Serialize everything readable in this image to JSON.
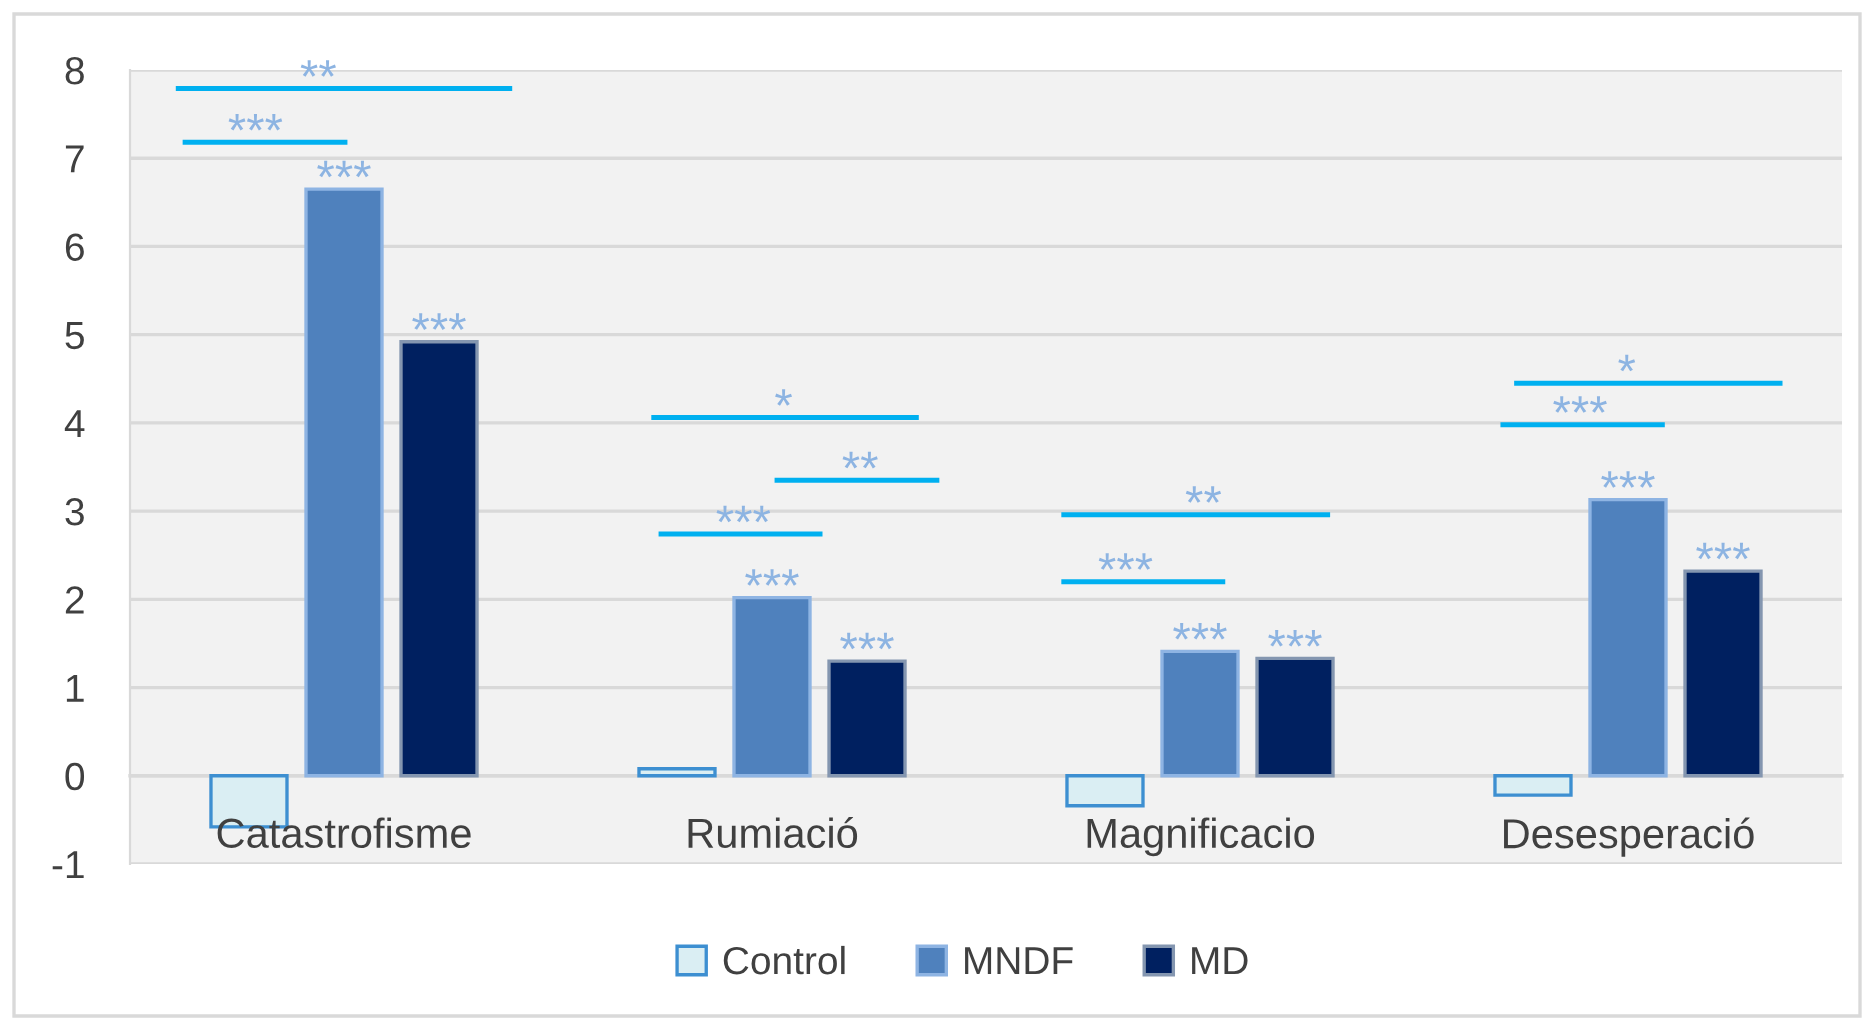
{
  "chart_data": {
    "type": "bar",
    "categories": [
      "Catastrofisme",
      "Rumiació",
      "Magnificacio",
      "Desesperació"
    ],
    "series": [
      {
        "name": "Control",
        "color": "#daeef3",
        "values": [
          -0.58,
          0.08,
          -0.34,
          -0.22
        ]
      },
      {
        "name": "MNDF",
        "color": "#4f81bd",
        "values": [
          6.65,
          2.02,
          1.41,
          3.13
        ],
        "value_labels": [
          "***",
          "***",
          "***",
          "***"
        ]
      },
      {
        "name": "MD",
        "color": "#002060",
        "values": [
          4.92,
          1.3,
          1.33,
          2.32
        ],
        "value_labels": [
          "***",
          "***",
          "***",
          "***"
        ]
      }
    ],
    "ylim": [
      -1,
      8
    ],
    "yticks": [
      -1,
      0,
      1,
      2,
      3,
      4,
      5,
      6,
      7,
      8
    ],
    "grid": "y",
    "legend": "bottom",
    "annotations": [
      "**",
      "***",
      "*",
      "**",
      "***",
      "**",
      "***",
      "*",
      "***"
    ]
  }
}
